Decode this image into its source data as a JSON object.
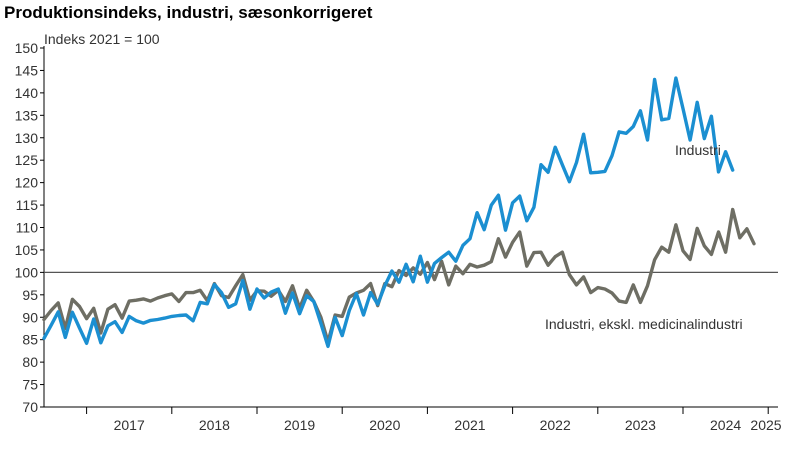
{
  "chart_data": {
    "type": "line",
    "title": "Produktionsindeks, industri, sæsonkorrigeret",
    "unit_label": "Indeks 2021 = 100",
    "ylim": [
      70,
      150
    ],
    "y_ticks": [
      "70",
      "75",
      "80",
      "85",
      "90",
      "95",
      "100",
      "105",
      "110",
      "115",
      "120",
      "125",
      "130",
      "135",
      "140",
      "145",
      "150"
    ],
    "x_ticks": [
      "2017",
      "2018",
      "2019",
      "2020",
      "2021",
      "2022",
      "2023",
      "2024",
      "2025"
    ],
    "x_start": "2016-07",
    "reference_line": 100,
    "grid": false,
    "series": [
      {
        "name": "Industri",
        "color": "#1b8fd1",
        "values": [
          85.3,
          88.2,
          91.2,
          85.5,
          91.1,
          87.6,
          84.2,
          89.6,
          84.3,
          88.1,
          89.0,
          86.6,
          90.2,
          89.2,
          88.7,
          89.3,
          89.5,
          89.8,
          90.2,
          90.4,
          90.5,
          89.2,
          93.3,
          93.0,
          97.3,
          95.5,
          92.2,
          93.0,
          98.2,
          91.8,
          96.3,
          94.3,
          95.6,
          96.3,
          90.9,
          95.4,
          90.8,
          94.8,
          93.5,
          88.6,
          83.5,
          90.0,
          85.9,
          91.5,
          95.3,
          90.5,
          95.5,
          92.9,
          97.0,
          100.3,
          97.8,
          101.8,
          97.9,
          103.6,
          97.8,
          102.0,
          103.3,
          104.5,
          102.5,
          106.0,
          107.5,
          113.3,
          109.5,
          115.0,
          117.2,
          109.4,
          115.5,
          117.0,
          111.5,
          114.5,
          124.0,
          122.3,
          127.9,
          124.0,
          120.2,
          124.5,
          130.8,
          122.2,
          122.3,
          122.5,
          126.0,
          131.3,
          131.0,
          132.5,
          136.0,
          129.5,
          143.0,
          134.0,
          134.3,
          143.3,
          136.5,
          129.5,
          137.9,
          129.8,
          134.8,
          122.4,
          126.9,
          122.8
        ]
      },
      {
        "name": "Industri, ekskl. medicinalindustri",
        "color": "#6e6e64",
        "values": [
          89.5,
          91.5,
          93.2,
          87.5,
          94.0,
          92.4,
          89.7,
          92.0,
          86.5,
          91.8,
          92.8,
          89.8,
          93.6,
          93.8,
          94.1,
          93.6,
          94.3,
          94.8,
          95.2,
          93.5,
          95.5,
          95.5,
          96.0,
          93.7,
          97.5,
          94.8,
          94.4,
          97.0,
          99.5,
          93.8,
          95.9,
          95.8,
          94.7,
          96.0,
          93.5,
          97.0,
          92.0,
          96.0,
          93.5,
          90.0,
          84.5,
          90.5,
          90.2,
          94.5,
          95.4,
          96.0,
          97.5,
          92.6,
          97.5,
          96.8,
          100.4,
          99.3,
          101.0,
          99.6,
          102.2,
          98.4,
          102.5,
          97.2,
          101.4,
          99.7,
          101.8,
          101.2,
          101.6,
          102.4,
          107.5,
          103.4,
          106.7,
          109.0,
          101.4,
          104.4,
          104.5,
          101.6,
          103.5,
          104.5,
          99.5,
          97.2,
          99.0,
          95.5,
          96.6,
          96.3,
          95.4,
          93.6,
          93.3,
          97.2,
          93.3,
          97.0,
          102.8,
          105.6,
          104.5,
          110.6,
          104.8,
          102.9,
          109.8,
          105.9,
          104.0,
          109.0,
          104.5,
          114.0,
          107.7,
          109.7,
          106.4
        ]
      }
    ],
    "annotations": [
      "Industri",
      "Industri, ekskl. medicinalindustri"
    ]
  }
}
